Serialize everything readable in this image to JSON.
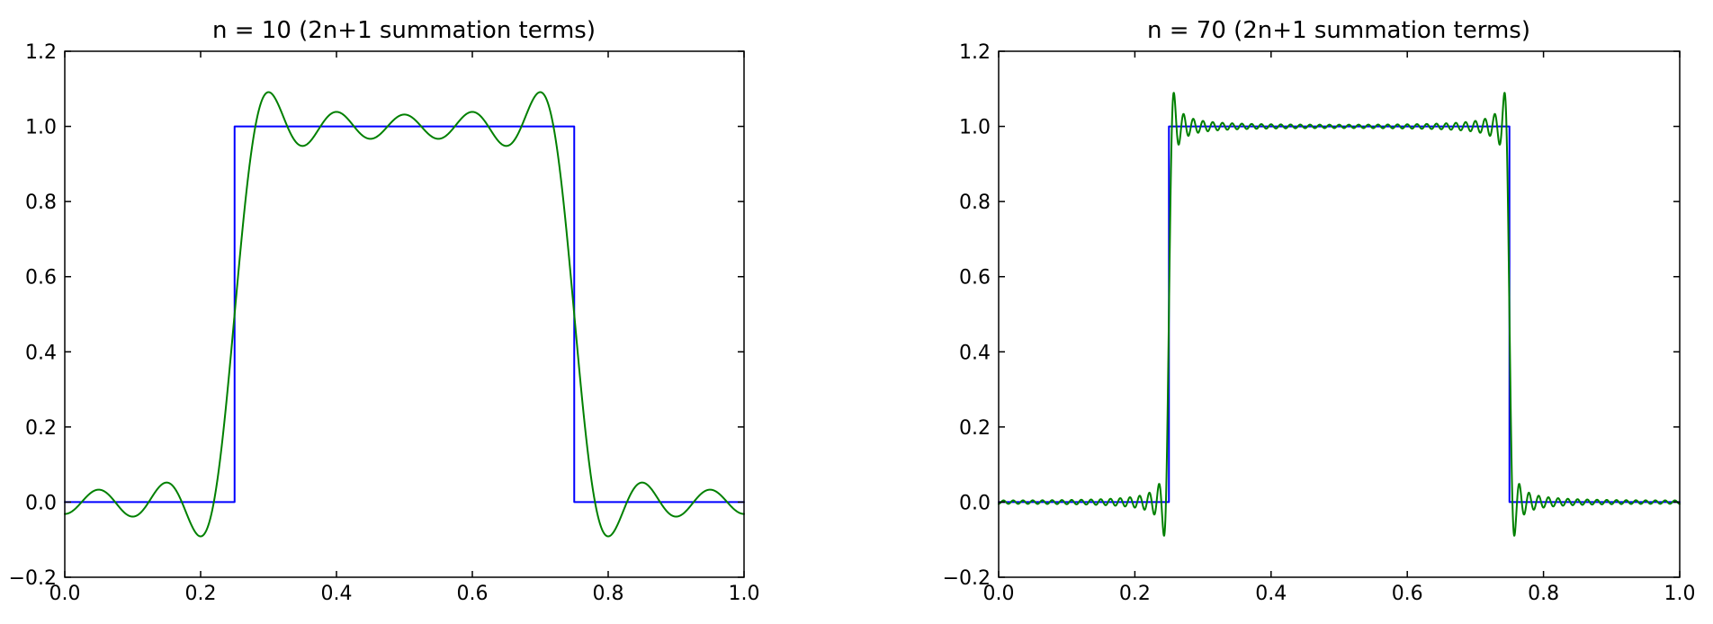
{
  "figure": {
    "background": "#ffffff",
    "text_color": "#000000"
  },
  "chart_data": [
    {
      "type": "line",
      "title": "n = 10 (2n+1 summation terms)",
      "xlabel": "",
      "ylabel": "",
      "xlim": [
        0.0,
        1.0
      ],
      "ylim": [
        -0.2,
        1.2
      ],
      "xtick_values": [
        0.0,
        0.2,
        0.4,
        0.6,
        0.8,
        1.0
      ],
      "xtick_labels": [
        "0.0",
        "0.2",
        "0.4",
        "0.6",
        "0.8",
        "1.0"
      ],
      "ytick_values": [
        -0.2,
        0.0,
        0.2,
        0.4,
        0.6,
        0.8,
        1.0,
        1.2
      ],
      "ytick_labels": [
        "−0.2",
        "0.0",
        "0.2",
        "0.4",
        "0.6",
        "0.8",
        "1.0",
        "1.2"
      ],
      "grid": false,
      "legend": "none",
      "series": [
        {
          "name": "square-wave",
          "kind": "step",
          "color": "#0000ff",
          "points": [
            [
              0.0,
              0.0
            ],
            [
              0.25,
              0.0
            ],
            [
              0.25,
              1.0
            ],
            [
              0.75,
              1.0
            ],
            [
              0.75,
              0.0
            ],
            [
              1.0,
              0.0
            ]
          ]
        },
        {
          "name": "fourier-partial-sum",
          "kind": "fourier_square_sum",
          "color": "#008000",
          "n": 10,
          "formula": "f(x) = 0.5 + (2/pi) * sum over odd k<=n of sin(2*pi*k*(x-0.25))/k",
          "rise_edge_x": 0.25,
          "fall_edge_x": 0.75,
          "low_level": 0.0,
          "high_level": 1.0,
          "peak_overshoot_y": 1.09,
          "peak_undershoot_y": -0.09
        }
      ]
    },
    {
      "type": "line",
      "title": "n = 70 (2n+1 summation terms)",
      "xlabel": "",
      "ylabel": "",
      "xlim": [
        0.0,
        1.0
      ],
      "ylim": [
        -0.2,
        1.2
      ],
      "xtick_values": [
        0.0,
        0.2,
        0.4,
        0.6,
        0.8,
        1.0
      ],
      "xtick_labels": [
        "0.0",
        "0.2",
        "0.4",
        "0.6",
        "0.8",
        "1.0"
      ],
      "ytick_values": [
        -0.2,
        0.0,
        0.2,
        0.4,
        0.6,
        0.8,
        1.0,
        1.2
      ],
      "ytick_labels": [
        "−0.2",
        "0.0",
        "0.2",
        "0.4",
        "0.6",
        "0.8",
        "1.0",
        "1.2"
      ],
      "grid": false,
      "legend": "none",
      "series": [
        {
          "name": "square-wave",
          "kind": "step",
          "color": "#0000ff",
          "points": [
            [
              0.0,
              0.0
            ],
            [
              0.25,
              0.0
            ],
            [
              0.25,
              1.0
            ],
            [
              0.75,
              1.0
            ],
            [
              0.75,
              0.0
            ],
            [
              1.0,
              0.0
            ]
          ]
        },
        {
          "name": "fourier-partial-sum",
          "kind": "fourier_square_sum",
          "color": "#008000",
          "n": 70,
          "formula": "f(x) = 0.5 + (2/pi) * sum over odd k<=n of sin(2*pi*k*(x-0.25))/k",
          "rise_edge_x": 0.25,
          "fall_edge_x": 0.75,
          "low_level": 0.0,
          "high_level": 1.0,
          "peak_overshoot_y": 1.09,
          "peak_undershoot_y": -0.09
        }
      ]
    }
  ]
}
